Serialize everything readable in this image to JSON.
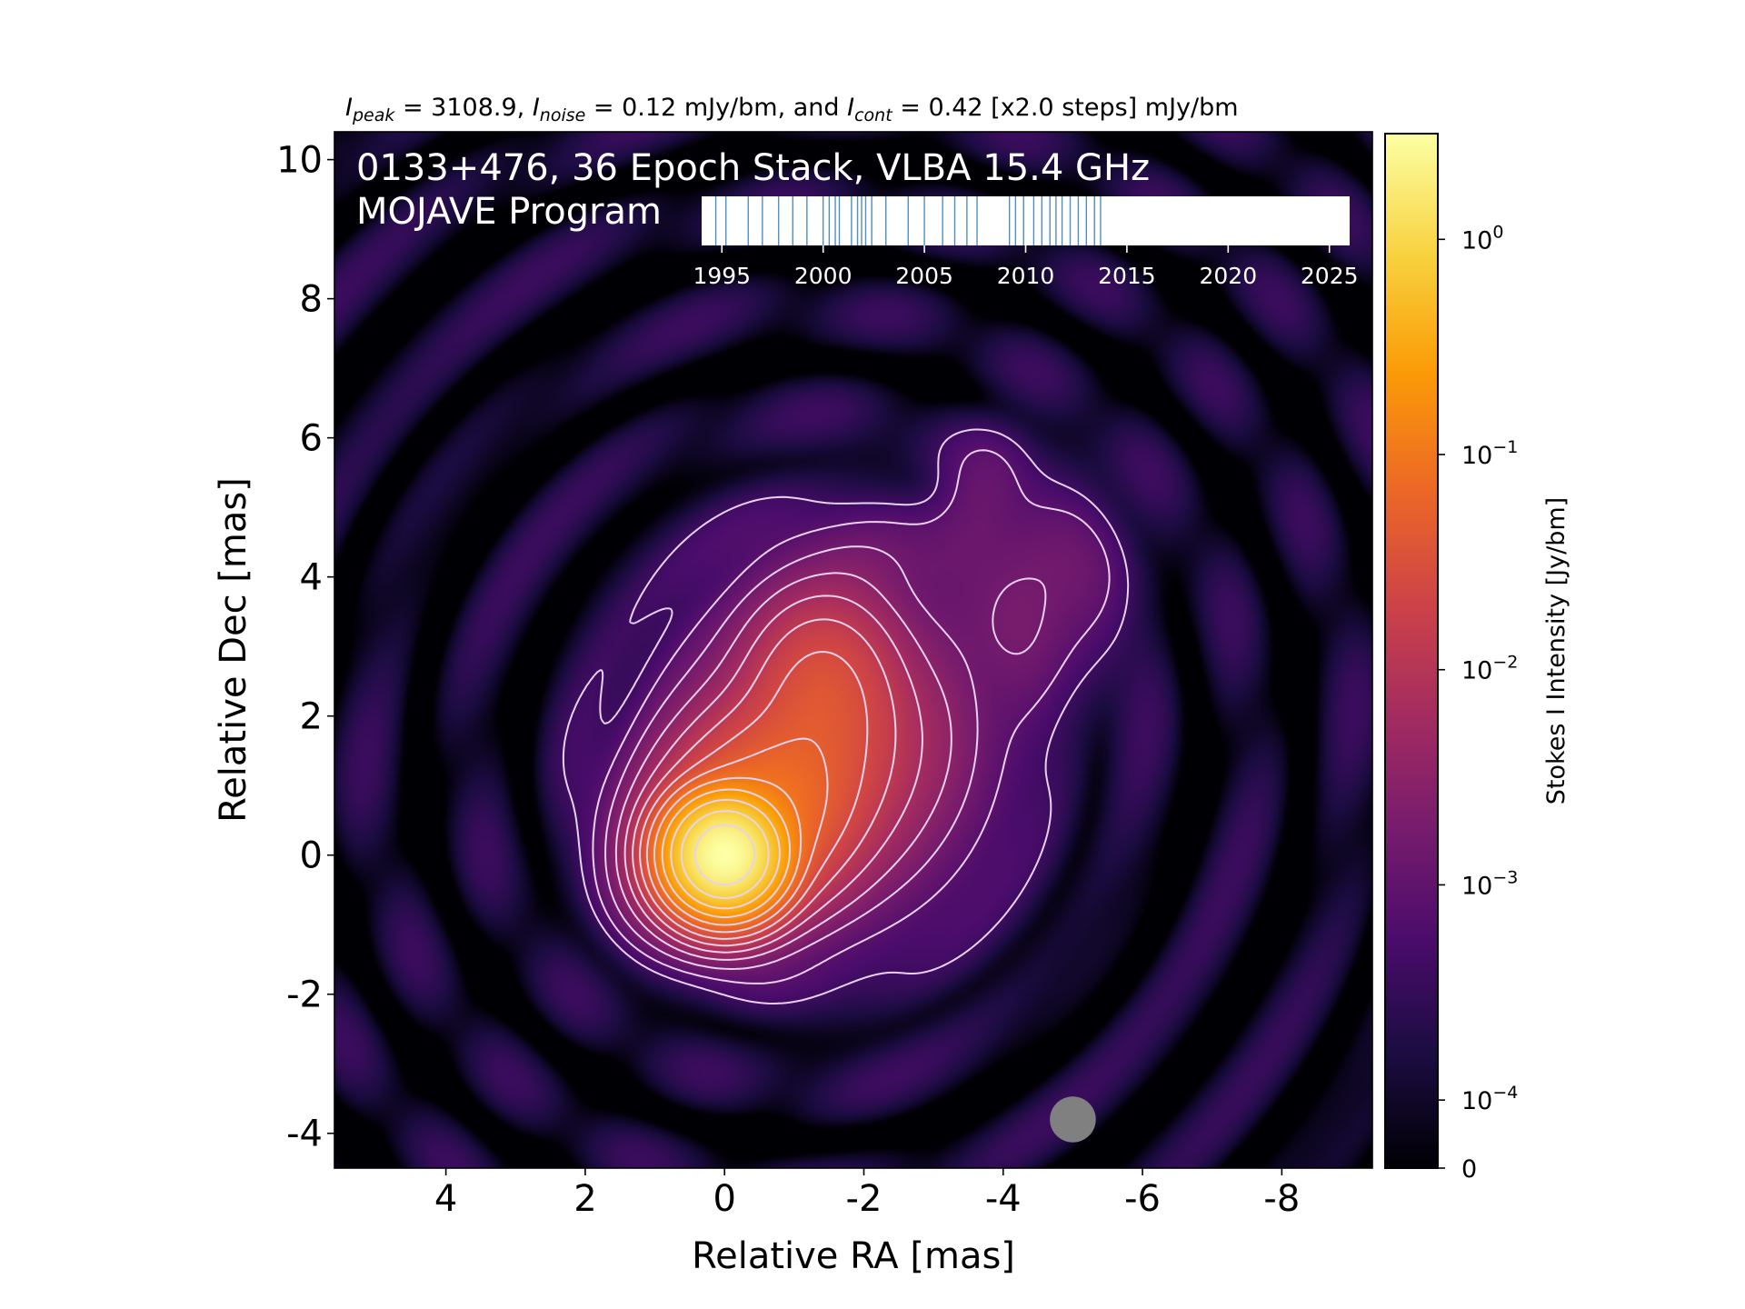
{
  "colors": {
    "background": "#000004",
    "contour": "#e8d2ee",
    "timeline_bar": "#ffffff",
    "epoch_line": "#4f8fbf",
    "beam": "#808080",
    "colormap": [
      "#000004",
      "#1b0c41",
      "#4a0c6b",
      "#781c6d",
      "#a52c60",
      "#cf4446",
      "#ed6925",
      "#fb9b06",
      "#f7d13d",
      "#fcffa4"
    ]
  },
  "chart_data": {
    "type": "heatmap",
    "title_parts": {
      "peak_sym": "I",
      "peak_sub": "peak",
      "peak_val": " = 3108.9, ",
      "noise_sym": "I",
      "noise_sub": "noise",
      "noise_val": " = 0.12 mJy/bm, and ",
      "cont_sym": "I",
      "cont_sub": "cont",
      "cont_val": " = 0.42 [x2.0 steps] mJy/bm"
    },
    "source_label": "0133+476, 36 Epoch Stack, VLBA 15.4 GHz",
    "program_label": "MOJAVE Program",
    "xlabel": "Relative RA [mas]",
    "ylabel": "Relative Dec [mas]",
    "xlim": [
      5.6,
      -9.3
    ],
    "ylim": [
      -4.5,
      10.4
    ],
    "xticks": [
      {
        "v": 4,
        "label": "4"
      },
      {
        "v": 2,
        "label": "2"
      },
      {
        "v": 0,
        "label": "0"
      },
      {
        "v": -2,
        "label": "-2"
      },
      {
        "v": -4,
        "label": "-4"
      },
      {
        "v": -6,
        "label": "-6"
      },
      {
        "v": -8,
        "label": "-8"
      }
    ],
    "yticks": [
      {
        "v": 10,
        "label": "10"
      },
      {
        "v": 8,
        "label": "8"
      },
      {
        "v": 6,
        "label": "6"
      },
      {
        "v": 4,
        "label": "4"
      },
      {
        "v": 2,
        "label": "2"
      },
      {
        "v": 0,
        "label": "0"
      },
      {
        "v": -2,
        "label": "-2"
      },
      {
        "v": -4,
        "label": "-4"
      }
    ],
    "colorbar": {
      "label": "Stokes I Intensity [Jy/bm]",
      "scale": "log",
      "range": [
        0,
        3.1
      ],
      "ticks": [
        {
          "v": 1,
          "base": "10",
          "exp": "0"
        },
        {
          "v": 0.1,
          "base": "10",
          "exp": "−1"
        },
        {
          "v": 0.01,
          "base": "10",
          "exp": "−2"
        },
        {
          "v": 0.001,
          "base": "10",
          "exp": "−3"
        },
        {
          "v": 0.0001,
          "base": "10",
          "exp": "−4"
        },
        {
          "v": 0,
          "base": "0",
          "exp": ""
        }
      ]
    },
    "timeline": {
      "range": [
        1994.0,
        2026.0
      ],
      "ticks": [
        {
          "v": 1995,
          "label": "1995"
        },
        {
          "v": 2000,
          "label": "2000"
        },
        {
          "v": 2005,
          "label": "2005"
        },
        {
          "v": 2010,
          "label": "2010"
        },
        {
          "v": 2015,
          "label": "2015"
        },
        {
          "v": 2020,
          "label": "2020"
        },
        {
          "v": 2025,
          "label": "2025"
        }
      ],
      "epochs": [
        1994.7,
        1995.2,
        1996.3,
        1997.0,
        1997.8,
        1998.5,
        1999.2,
        2000.0,
        2000.3,
        2000.6,
        2000.8,
        2001.4,
        2001.7,
        2001.9,
        2002.1,
        2002.4,
        2003.1,
        2004.2,
        2005.0,
        2005.9,
        2006.5,
        2007.1,
        2007.6,
        2009.5,
        2009.9,
        2010.4,
        2010.8,
        2011.2,
        2011.5,
        2011.8,
        2012.2,
        2012.6,
        2013.0,
        2013.4,
        2013.7,
        2009.2
      ]
    },
    "components": [
      {
        "x": 0.0,
        "y": 0.0,
        "peak": 3.1089,
        "sx": 0.38,
        "sy": 0.38,
        "pa": 0
      },
      {
        "x": -0.4,
        "y": 0.4,
        "peak": 0.09,
        "sx": 0.75,
        "sy": 0.6,
        "pa": -40
      },
      {
        "x": -0.9,
        "y": 1.1,
        "peak": 0.03,
        "sx": 1.0,
        "sy": 0.75,
        "pa": -35
      },
      {
        "x": -1.4,
        "y": 2.4,
        "peak": 0.028,
        "sx": 0.55,
        "sy": 0.7,
        "pa": 0
      },
      {
        "x": -1.6,
        "y": 1.6,
        "peak": 0.004,
        "sx": 1.3,
        "sy": 1.5,
        "pa": 0
      },
      {
        "x": -4.5,
        "y": 3.8,
        "peak": 0.0016,
        "sx": 0.7,
        "sy": 0.9,
        "pa": 10
      },
      {
        "x": -3.6,
        "y": 5.0,
        "peak": 0.0009,
        "sx": 0.4,
        "sy": 0.7,
        "pa": 20
      },
      {
        "x": -2.0,
        "y": 4.1,
        "peak": 0.0009,
        "sx": 0.5,
        "sy": 0.4,
        "pa": 0
      }
    ],
    "contour_levels_mJy": [
      0.42,
      0.84,
      1.68,
      3.36,
      6.72,
      13.4,
      26.9,
      53.8,
      107.5,
      215,
      430,
      860,
      1720
    ],
    "beam": {
      "x": -5.0,
      "y": -3.8,
      "major": 0.66,
      "minor": 0.66,
      "pa": 0
    }
  }
}
